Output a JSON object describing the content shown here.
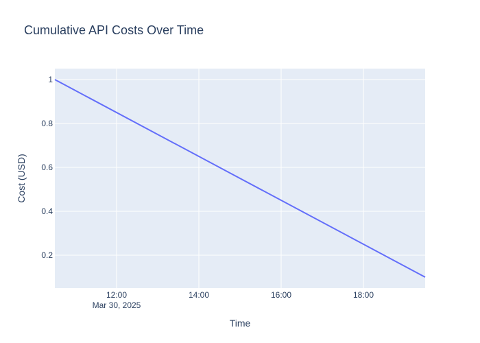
{
  "chart_data": {
    "type": "line",
    "title": "Cumulative API Costs Over Time",
    "xlabel": "Time",
    "ylabel": "Cost (USD)",
    "x": [
      "2025-03-30T10:30",
      "2025-03-30T19:30"
    ],
    "series": [
      {
        "values": [
          1.0,
          0.1
        ],
        "color": "#636efa"
      }
    ],
    "xlim": [
      "2025-03-30T10:30",
      "2025-03-30T19:30"
    ],
    "ylim": [
      0.05,
      1.05
    ],
    "x_ticks": [
      {
        "value": "2025-03-30T12:00",
        "label": "12:00",
        "sublabel": "Mar 30, 2025"
      },
      {
        "value": "2025-03-30T14:00",
        "label": "14:00"
      },
      {
        "value": "2025-03-30T16:00",
        "label": "16:00"
      },
      {
        "value": "2025-03-30T18:00",
        "label": "18:00"
      }
    ],
    "y_ticks": [
      {
        "value": 0.2,
        "label": "0.2"
      },
      {
        "value": 0.4,
        "label": "0.4"
      },
      {
        "value": 0.6,
        "label": "0.6"
      },
      {
        "value": 0.8,
        "label": "0.8"
      },
      {
        "value": 1.0,
        "label": "1"
      }
    ],
    "grid": true,
    "plot_background": "#e5ecf6",
    "grid_color": "#ffffff",
    "text_color": "#2a3f5f"
  }
}
